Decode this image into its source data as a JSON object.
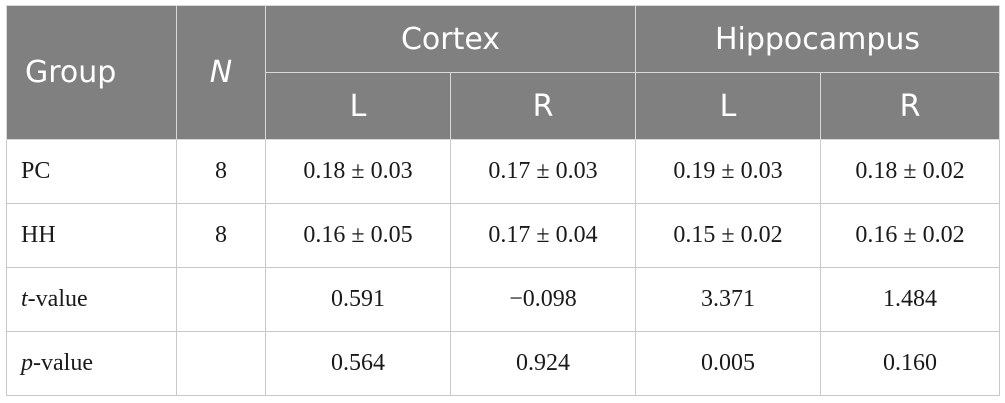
{
  "header": {
    "group": "Group",
    "n": "N",
    "cortex": "Cortex",
    "hippocampus": "Hippocampus",
    "sub": [
      "L",
      "R",
      "L",
      "R"
    ]
  },
  "rows": [
    {
      "label": "PC",
      "n": "8",
      "values": [
        "0.18 ± 0.03",
        "0.17 ± 0.03",
        "0.19 ± 0.03",
        "0.18 ± 0.02"
      ]
    },
    {
      "label": "HH",
      "n": "8",
      "values": [
        "0.16 ± 0.05",
        "0.17 ± 0.04",
        "0.15 ± 0.02",
        "0.16 ± 0.02"
      ]
    },
    {
      "label_italic": "t",
      "label_rest": "-value",
      "n": "",
      "values": [
        "0.591",
        "−0.098",
        "3.371",
        "1.484"
      ]
    },
    {
      "label_italic": "p",
      "label_rest": "-value",
      "n": "",
      "values": [
        "0.564",
        "0.924",
        "0.005",
        "0.160"
      ]
    }
  ]
}
